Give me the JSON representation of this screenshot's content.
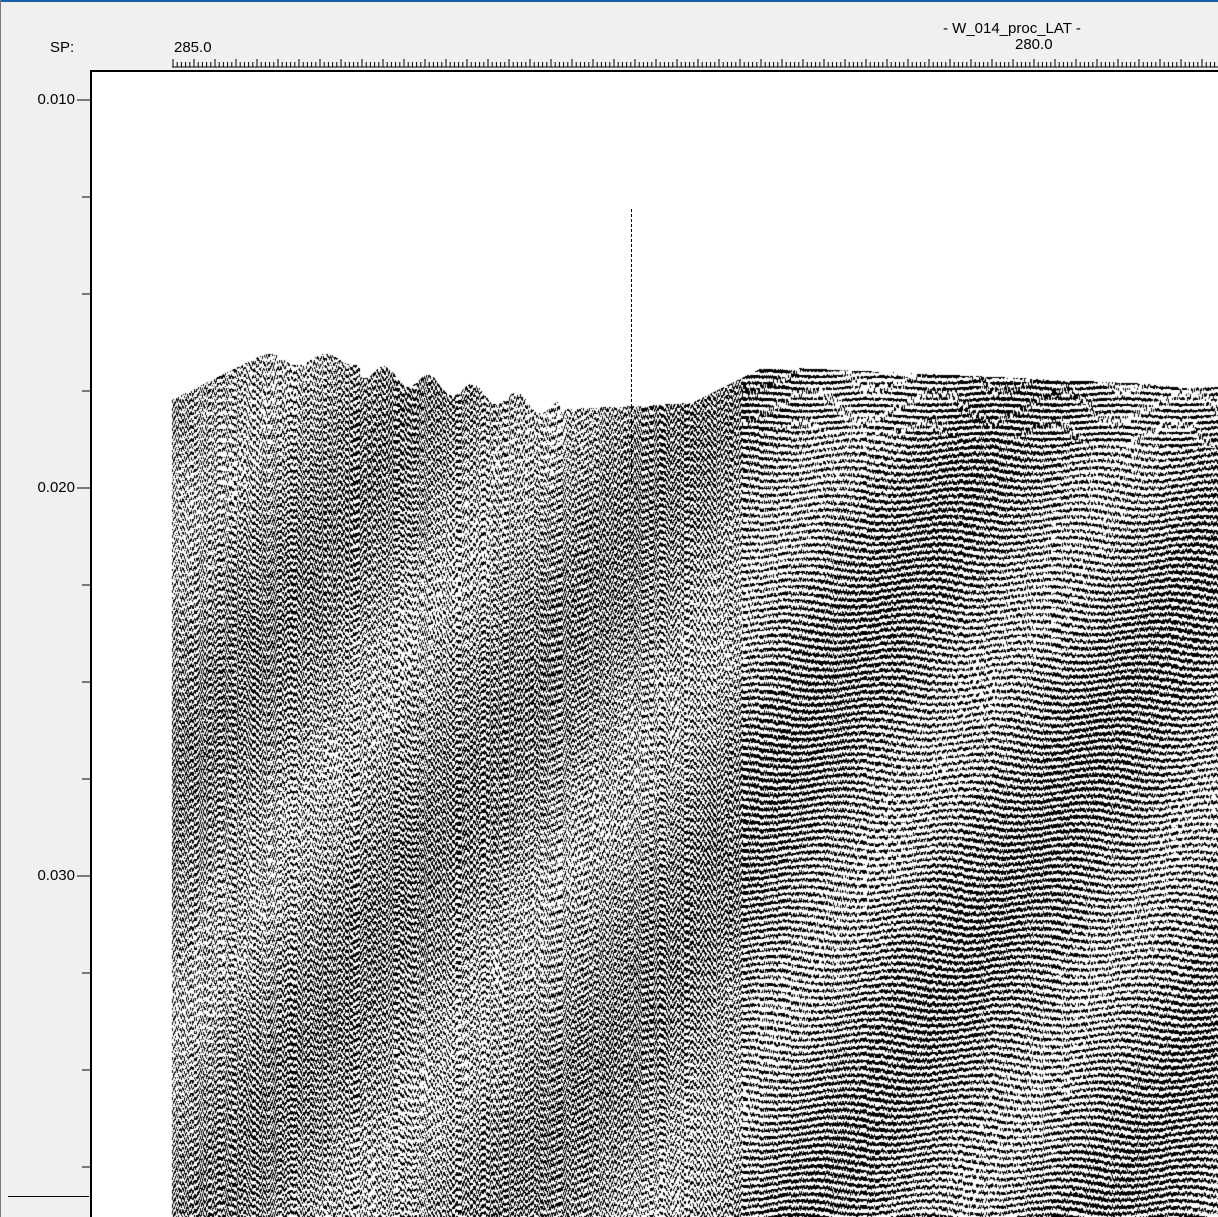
{
  "header": {
    "sp_label": "SP:",
    "sp_start": "285.0",
    "line_name": "- W_014_proc_LAT -",
    "sp_mid": "280.0"
  },
  "time_axis": {
    "labels": [
      "0.010",
      "0.020",
      "0.030"
    ],
    "values": [
      0.01,
      0.02,
      0.03
    ],
    "minor_step": 0.0025,
    "range": [
      0.01,
      0.0377
    ]
  },
  "section": {
    "display": "wiggle-variable-area",
    "trace_color": "#000000",
    "background_color": "#ffffff",
    "seafloor_time_range": [
      0.0163,
      0.0185
    ]
  }
}
